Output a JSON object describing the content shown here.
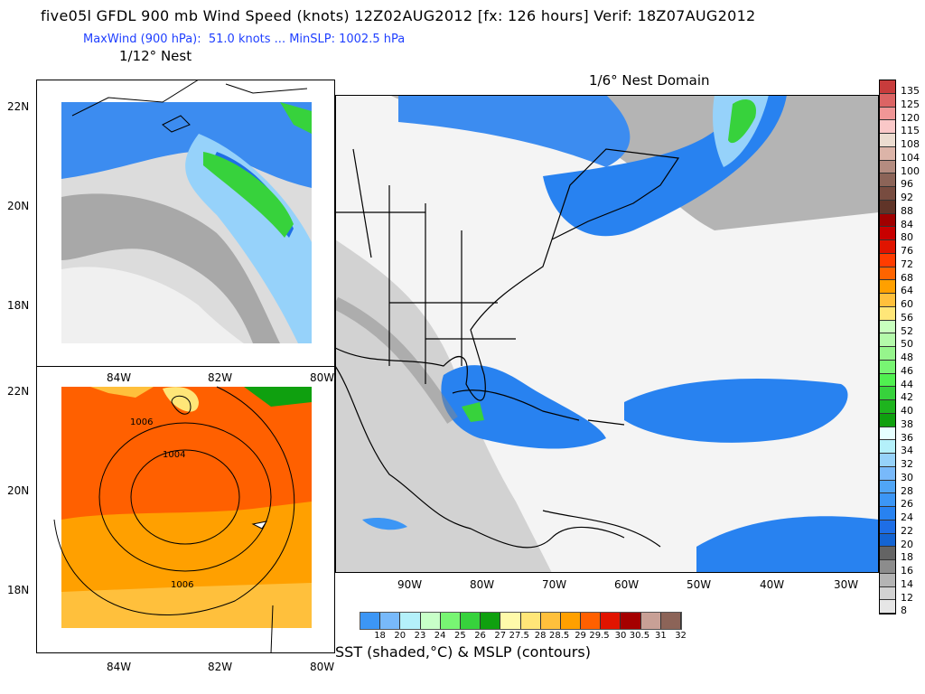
{
  "header": {
    "title": "five05l GFDL 900 mb Wind Speed (knots) 12Z02AUG2012 [fx: 126 hours] Verif: 18Z07AUG2012",
    "subtitle": "MaxWind (900 hPa):  51.0 knots ... MinSLP: 1002.5 hPa",
    "nest_left": "1/12° Nest",
    "nest_right": "1/6° Nest Domain"
  },
  "left_panels": {
    "lat_labels": [
      "22N",
      "20N",
      "18N"
    ],
    "lon_labels": [
      "84W",
      "82W",
      "80W"
    ],
    "isobars": [
      "1006",
      "1004",
      "1006"
    ]
  },
  "main_map": {
    "lon_labels": [
      "90W",
      "80W",
      "70W",
      "60W",
      "50W",
      "40W",
      "30W"
    ]
  },
  "wind_colorbar": {
    "labels": [
      "135",
      "125",
      "120",
      "115",
      "108",
      "104",
      "100",
      "96",
      "92",
      "88",
      "84",
      "80",
      "76",
      "72",
      "68",
      "64",
      "60",
      "56",
      "52",
      "50",
      "48",
      "46",
      "44",
      "42",
      "40",
      "38",
      "36",
      "34",
      "32",
      "30",
      "28",
      "26",
      "24",
      "22",
      "20",
      "18",
      "16",
      "14",
      "12",
      "8"
    ],
    "colors": [
      "#c83c3c",
      "#dc6464",
      "#f09696",
      "#fac8c8",
      "#ecdcd0",
      "#dcb4a8",
      "#b48c80",
      "#8c6458",
      "#784c40",
      "#603428",
      "#a00000",
      "#c80000",
      "#e01400",
      "#ff3c00",
      "#ff6400",
      "#ffa000",
      "#ffc03c",
      "#ffe678",
      "#c8ffbe",
      "#b4faaa",
      "#96f58c",
      "#78f573",
      "#50f050",
      "#37d23c",
      "#1eb41e",
      "#0fa00f",
      "#e6ffff",
      "#b4f0fa",
      "#96d2fa",
      "#78b9fa",
      "#50a5f5",
      "#3c96f5",
      "#2882f0",
      "#1e6ee6",
      "#1464d2",
      "#646464",
      "#8c8c8c",
      "#b4b4b4",
      "#d2d2d2",
      "#e6e6e6",
      "#ffffff"
    ]
  },
  "sst_colorbar": {
    "labels": [
      "18",
      "20",
      "23",
      "24",
      "25",
      "26",
      "27",
      "27.5",
      "28",
      "28.5",
      "29",
      "29.5",
      "30",
      "30.5",
      "31",
      "32"
    ],
    "colors": [
      "#3c96f5",
      "#78b9fa",
      "#b4f0fa",
      "#c8ffc8",
      "#78f573",
      "#37d23c",
      "#0fa00f",
      "#fffaaa",
      "#ffe678",
      "#ffc03c",
      "#ffa000",
      "#ff6000",
      "#e11400",
      "#a50000",
      "#c8a096",
      "#8c6458",
      "#643c32"
    ],
    "caption": "SST (shaded,°C) & MSLP (contours)"
  }
}
